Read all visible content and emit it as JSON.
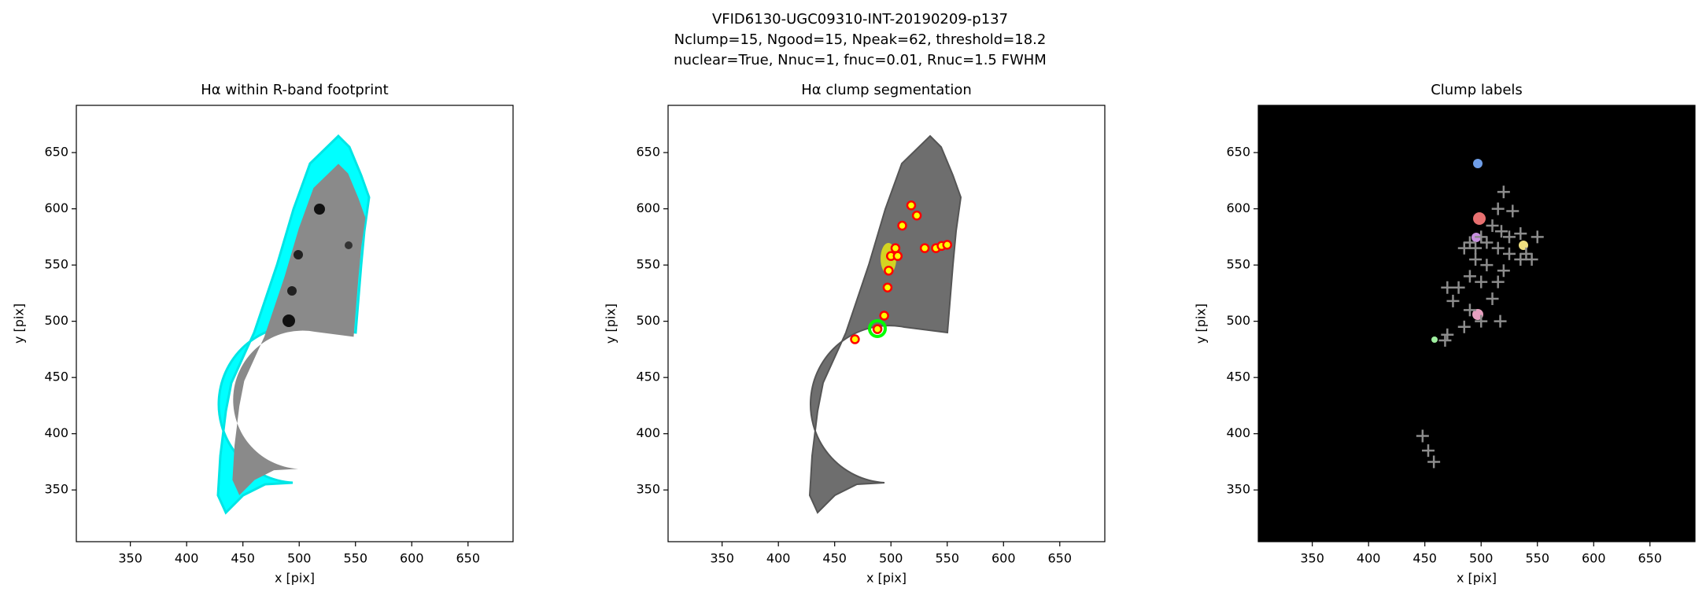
{
  "figure_title": [
    "VFID6130-UGC09310-INT-20190209-p137",
    "Nclump=15, Ngood=15, Npeak=62, threshold=18.2",
    "nuclear=True, Nnuc=1, fnuc=0.01, Rnuc=1.5 FWHM"
  ],
  "chart_data": [
    {
      "type": "image",
      "title": "Hα within R-band footprint",
      "xlabel": "x [pix]",
      "ylabel": "y [pix]",
      "xlim": [
        302,
        690
      ],
      "ylim": [
        304,
        692
      ],
      "xticks": [
        350,
        400,
        450,
        500,
        550,
        600,
        650
      ],
      "yticks": [
        350,
        400,
        450,
        500,
        550,
        600,
        650
      ]
    },
    {
      "type": "scatter",
      "marker": "circle",
      "color": "#ff0000",
      "fill": "#ffff00",
      "title": "Hα clump segmentation",
      "xlabel": "x [pix]",
      "ylabel": "y [pix]",
      "xlim": [
        302,
        690
      ],
      "ylim": [
        304,
        692
      ],
      "xticks": [
        350,
        400,
        450,
        500,
        550,
        600,
        650
      ],
      "yticks": [
        350,
        400,
        450,
        500,
        550,
        600,
        650
      ],
      "x": [
        518,
        523,
        510,
        504,
        500,
        506,
        498,
        530,
        540,
        545,
        550,
        497,
        494,
        488,
        468
      ],
      "y": [
        603,
        594,
        585,
        565,
        558,
        558,
        545,
        565,
        565,
        567,
        568,
        530,
        505,
        493,
        484
      ]
    },
    {
      "type": "scatter",
      "marker": "plus",
      "color": "#8c8c8c",
      "title": "Clump labels",
      "xlabel": "x [pix]",
      "ylabel": "y [pix]",
      "xlim": [
        302,
        690
      ],
      "ylim": [
        304,
        692
      ],
      "xticks": [
        350,
        400,
        450,
        500,
        550,
        600,
        650
      ],
      "yticks": [
        350,
        400,
        450,
        500,
        550,
        600,
        650
      ],
      "x": [
        520,
        515,
        528,
        510,
        518,
        500,
        490,
        505,
        525,
        535,
        550,
        485,
        495,
        515,
        525,
        540,
        545,
        535,
        495,
        505,
        520,
        490,
        500,
        515,
        480,
        470,
        475,
        510,
        490,
        500,
        517,
        485,
        470,
        468,
        448,
        453,
        458
      ],
      "y": [
        615,
        600,
        598,
        585,
        580,
        575,
        570,
        570,
        575,
        578,
        575,
        565,
        565,
        565,
        560,
        560,
        555,
        555,
        555,
        550,
        545,
        540,
        535,
        535,
        530,
        530,
        518,
        520,
        510,
        500,
        500,
        495,
        488,
        483,
        398,
        385,
        375
      ]
    }
  ]
}
